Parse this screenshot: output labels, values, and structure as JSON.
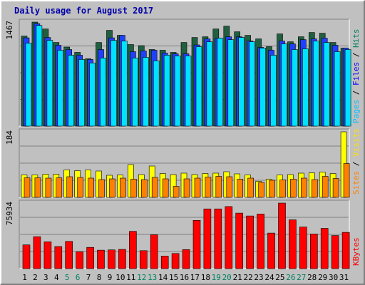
{
  "chart_data": {
    "type": "bar",
    "title": "Daily usage for August 2017",
    "categories": [
      "1",
      "2",
      "3",
      "4",
      "5",
      "6",
      "7",
      "8",
      "9",
      "10",
      "11",
      "12",
      "13",
      "14",
      "15",
      "16",
      "17",
      "18",
      "19",
      "20",
      "21",
      "22",
      "23",
      "24",
      "25",
      "26",
      "27",
      "28",
      "29",
      "30",
      "31"
    ],
    "weekend_days": [
      "5",
      "6",
      "12",
      "13",
      "19",
      "20",
      "26",
      "27"
    ],
    "panels": [
      {
        "id": "pages-files-hits",
        "ymax": 1467,
        "ymax_label": "1467",
        "ylabel": {
          "parts": [
            "Pages",
            " / ",
            "Files",
            " / ",
            "Hits"
          ],
          "colors": [
            "#00c0ff",
            "#000000",
            "#0000ff",
            "#000000",
            "#008060"
          ]
        },
        "series": [
          {
            "name": "Hits",
            "color": "#206040",
            "values": [
              1270,
              1467,
              1370,
              1180,
              1115,
              1040,
              950,
              1180,
              1350,
              1280,
              1150,
              1135,
              1080,
              1070,
              1040,
              1180,
              1250,
              1260,
              1370,
              1410,
              1330,
              1280,
              1230,
              1120,
              1300,
              1190,
              1260,
              1320,
              1310,
              1180,
              1100
            ]
          },
          {
            "name": "Files",
            "color": "#2040ff",
            "values": [
              1245,
              1445,
              1250,
              1140,
              1080,
              1000,
              940,
              1080,
              1245,
              1280,
              1050,
              1060,
              1070,
              1030,
              1020,
              1020,
              1145,
              1230,
              1240,
              1260,
              1260,
              1200,
              1110,
              1070,
              1200,
              1160,
              1220,
              1230,
              1240,
              1140,
              1100
            ]
          },
          {
            "name": "Pages",
            "color": "#00e0ff",
            "values": [
              1170,
              1420,
              1210,
              1070,
              1000,
              940,
              890,
              960,
              1210,
              1200,
              960,
              970,
              920,
              1000,
              990,
              990,
              1120,
              1190,
              1240,
              1220,
              1250,
              1190,
              1100,
              1000,
              1160,
              1080,
              1090,
              1200,
              1180,
              1050,
              1080
            ]
          }
        ]
      },
      {
        "id": "sites-visits",
        "ymax": 184,
        "ymax_label": "184",
        "ylabel": {
          "parts": [
            "Sites",
            " / ",
            "Visits"
          ],
          "colors": [
            "#ff8000",
            "#000000",
            "#ffe000"
          ]
        },
        "series": [
          {
            "name": "Visits",
            "color": "#ffff00",
            "values": [
              63,
              63,
              65,
              65,
              77,
              75,
              77,
              74,
              62,
              63,
              92,
              64,
              88,
              67,
              64,
              68,
              64,
              67,
              68,
              72,
              66,
              63,
              45,
              51,
              63,
              64,
              68,
              69,
              71,
              67,
              184
            ]
          },
          {
            "name": "Sites",
            "color": "#ff8000",
            "values": [
              55,
              55,
              54,
              55,
              58,
              56,
              54,
              50,
              52,
              54,
              51,
              50,
              56,
              52,
              31,
              52,
              54,
              57,
              59,
              58,
              51,
              54,
              42,
              48,
              49,
              51,
              54,
              50,
              59,
              53,
              95
            ]
          }
        ]
      },
      {
        "id": "kbytes",
        "ymax": 75934,
        "ymax_label": "75934",
        "ylabel": {
          "parts": [
            "KBytes"
          ],
          "colors": [
            "#ff0000"
          ]
        },
        "series": [
          {
            "name": "KBytes",
            "color": "#ff0000",
            "values": [
              27500,
              37000,
              31000,
              25600,
              31500,
              19600,
              24600,
              21400,
              21700,
              22300,
              43200,
              20800,
              39200,
              14500,
              17500,
              22000,
              55900,
              69200,
              69200,
              71900,
              64300,
              61000,
              63300,
              41200,
              75934,
              56500,
              48200,
              40100,
              46600,
              38300,
              42000
            ]
          }
        ]
      }
    ]
  }
}
